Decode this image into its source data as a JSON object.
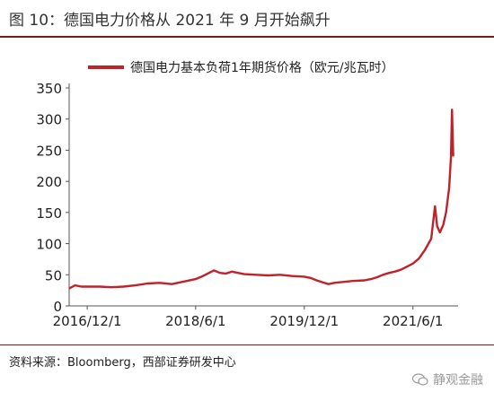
{
  "title": "图 10：德国电力价格从 2021 年 9 月开始飙升",
  "source": "资料来源：Bloomberg，西部证券研发中心",
  "watermark": "静观金融",
  "colors": {
    "series": "#c0222a",
    "rule": "#7a1a1a"
  },
  "chart_data": {
    "type": "line",
    "legend": {
      "label": "德国电力基本负荷1年期货价格（欧元/兆瓦时）",
      "placement": "top"
    },
    "ylim": [
      0,
      350
    ],
    "yticks": [
      0,
      50,
      100,
      150,
      200,
      250,
      300,
      350
    ],
    "xticks": [
      "2016/12/1",
      "2018/6/1",
      "2019/12/1",
      "2021/6/1"
    ],
    "grid": false,
    "series": [
      {
        "name": "德国电力基本负荷1年期货价格（欧元/兆瓦时）",
        "points": [
          [
            "2016/9/1",
            28
          ],
          [
            "2016/10/1",
            33
          ],
          [
            "2016/11/1",
            31
          ],
          [
            "2016/12/1",
            31
          ],
          [
            "2017/2/1",
            31
          ],
          [
            "2017/4/1",
            30
          ],
          [
            "2017/6/1",
            31
          ],
          [
            "2017/8/1",
            33
          ],
          [
            "2017/10/1",
            36
          ],
          [
            "2017/12/1",
            37
          ],
          [
            "2018/2/1",
            35
          ],
          [
            "2018/4/1",
            39
          ],
          [
            "2018/6/1",
            43
          ],
          [
            "2018/7/1",
            47
          ],
          [
            "2018/8/1",
            52
          ],
          [
            "2018/9/1",
            57
          ],
          [
            "2018/10/1",
            53
          ],
          [
            "2018/11/1",
            52
          ],
          [
            "2018/12/1",
            55
          ],
          [
            "2019/2/1",
            51
          ],
          [
            "2019/4/1",
            50
          ],
          [
            "2019/6/1",
            49
          ],
          [
            "2019/8/1",
            50
          ],
          [
            "2019/10/1",
            48
          ],
          [
            "2019/12/1",
            47
          ],
          [
            "2020/1/1",
            45
          ],
          [
            "2020/2/1",
            41
          ],
          [
            "2020/3/1",
            38
          ],
          [
            "2020/4/1",
            35
          ],
          [
            "2020/5/1",
            37
          ],
          [
            "2020/6/1",
            38
          ],
          [
            "2020/8/1",
            40
          ],
          [
            "2020/10/1",
            41
          ],
          [
            "2020/11/1",
            43
          ],
          [
            "2020/12/1",
            46
          ],
          [
            "2021/1/1",
            50
          ],
          [
            "2021/2/1",
            53
          ],
          [
            "2021/3/1",
            55
          ],
          [
            "2021/4/1",
            58
          ],
          [
            "2021/5/1",
            63
          ],
          [
            "2021/6/1",
            68
          ],
          [
            "2021/7/1",
            76
          ],
          [
            "2021/8/1",
            90
          ],
          [
            "2021/9/1",
            108
          ],
          [
            "2021/9/20",
            160
          ],
          [
            "2021/10/1",
            128
          ],
          [
            "2021/10/15",
            118
          ],
          [
            "2021/11/1",
            130
          ],
          [
            "2021/11/15",
            150
          ],
          [
            "2021/12/1",
            190
          ],
          [
            "2021/12/10",
            240
          ],
          [
            "2021/12/15",
            315
          ],
          [
            "2021/12/18",
            280
          ],
          [
            "2021/12/21",
            240
          ]
        ]
      }
    ]
  }
}
